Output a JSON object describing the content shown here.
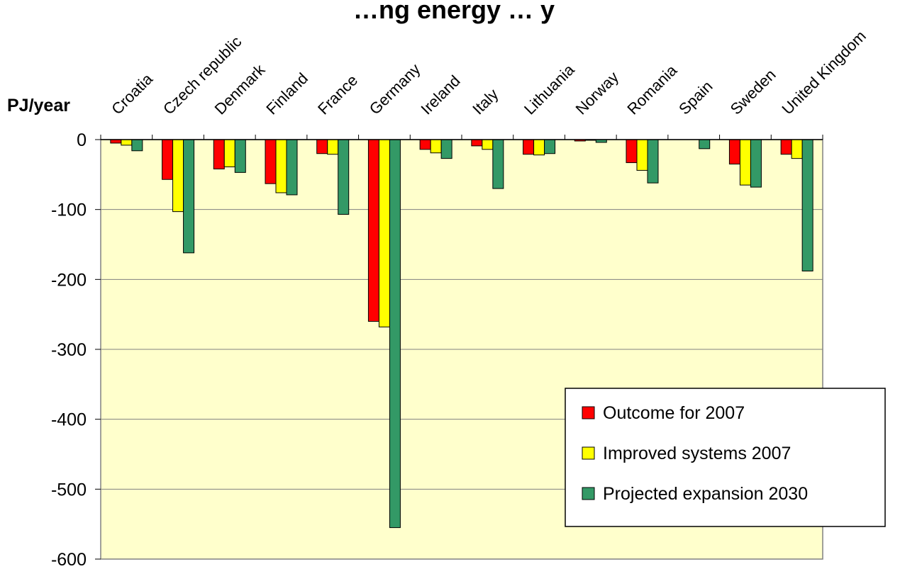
{
  "chart_data": {
    "type": "bar",
    "title": "…ng energy … y",
    "ylabel": "PJ/year",
    "xlabel": "",
    "ylim": [
      -600,
      0
    ],
    "yticks": [
      0,
      -100,
      -200,
      -300,
      -400,
      -500,
      -600
    ],
    "grid": true,
    "legend_position": "bottom-right",
    "plot_background": "#ffffcc",
    "categories": [
      "Croatia",
      "Czech republic",
      "Denmark",
      "Finland",
      "France",
      "Germany",
      "Ireland",
      "Italy",
      "Lithuania",
      "Norway",
      "Romania",
      "Spain",
      "Sweden",
      "United Kingdom"
    ],
    "series": [
      {
        "name": "Outcome for 2007",
        "color": "#ff0000",
        "values": [
          -5,
          -57,
          -42,
          -63,
          -20,
          -260,
          -14,
          -9,
          -21,
          -2,
          -33,
          0,
          -35,
          -21
        ]
      },
      {
        "name": "Improved systems 2007",
        "color": "#ffff00",
        "values": [
          -8,
          -103,
          -39,
          -76,
          -21,
          -268,
          -19,
          -14,
          -22,
          -1,
          -44,
          0,
          -65,
          -27
        ]
      },
      {
        "name": "Projected expansion 2030",
        "color": "#339966",
        "values": [
          -16,
          -162,
          -47,
          -79,
          -107,
          -555,
          -27,
          -70,
          -20,
          -4,
          -62,
          -13,
          -68,
          -188
        ]
      }
    ]
  }
}
